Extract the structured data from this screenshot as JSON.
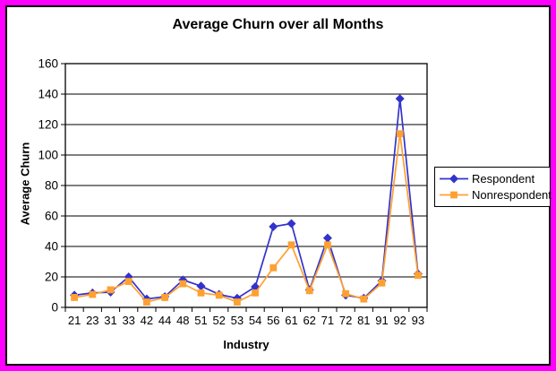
{
  "frame": {
    "outer_border_color": "#FF00FF",
    "inner_border_color": "#000000",
    "background": "#FFFFFF"
  },
  "chart_data": {
    "type": "line",
    "title": "Average Churn over all Months",
    "xlabel": "Industry",
    "ylabel": "Average Churn",
    "ylim": [
      0,
      160
    ],
    "yticks": [
      0,
      20,
      40,
      60,
      80,
      100,
      120,
      140,
      160
    ],
    "grid": true,
    "legend_position": "right",
    "categories": [
      "21",
      "23",
      "31",
      "33",
      "42",
      "44",
      "48",
      "51",
      "52",
      "53",
      "54",
      "56",
      "61",
      "62",
      "71",
      "72",
      "81",
      "91",
      "92",
      "93"
    ],
    "series": [
      {
        "name": "Respondent",
        "color": "#3333CC",
        "marker": "diamond",
        "values": [
          8,
          9.5,
          10,
          20,
          5.5,
          7,
          18,
          14,
          8.5,
          6,
          13.5,
          53,
          55,
          11.5,
          45.5,
          8,
          6,
          17.5,
          137,
          22
        ]
      },
      {
        "name": "Nonrespondent",
        "color": "#FFA033",
        "marker": "square",
        "values": [
          6.5,
          8.5,
          11.5,
          17,
          3.5,
          6.5,
          15.5,
          9.5,
          8,
          3.5,
          9.5,
          26,
          41,
          11,
          41,
          9,
          5.5,
          16,
          114,
          21
        ]
      }
    ]
  }
}
